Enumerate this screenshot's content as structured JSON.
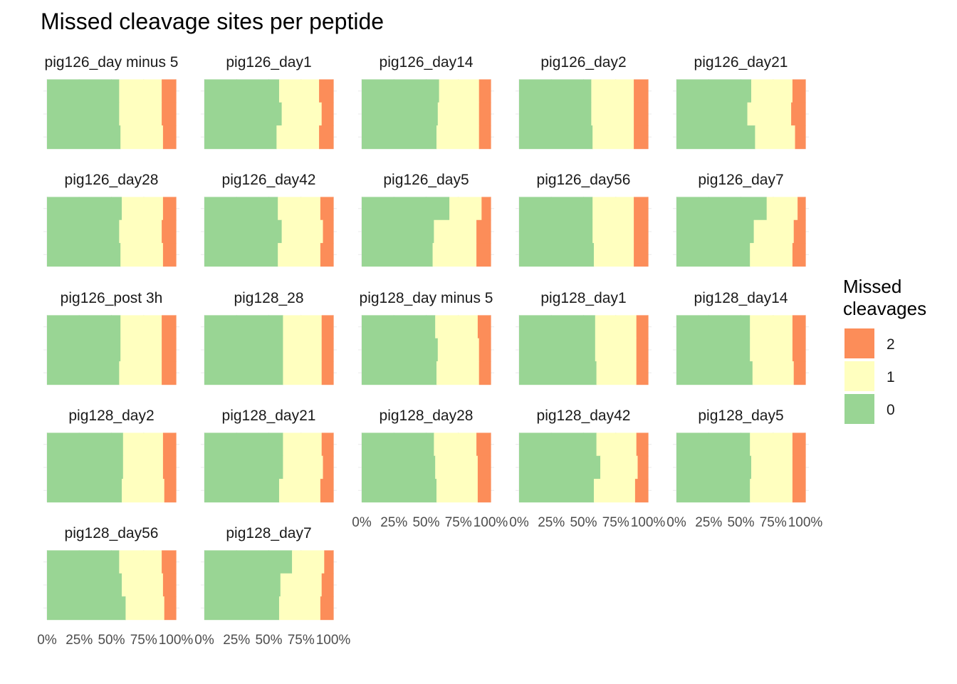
{
  "chart_data": {
    "type": "bar",
    "title": "Missed cleavage sites per peptide",
    "orientation": "horizontal-stacked-100",
    "xticks": [
      "0%",
      "25%",
      "50%",
      "75%",
      "100%"
    ],
    "legend": {
      "title_lines": [
        "Missed",
        "cleavages"
      ],
      "position": "right",
      "entries": [
        {
          "label": "2",
          "color": "#fc8d59"
        },
        {
          "label": "1",
          "color": "#ffffbf"
        },
        {
          "label": "0",
          "color": "#99d594"
        }
      ]
    },
    "series_order": [
      "0",
      "1",
      "2"
    ],
    "colors": {
      "0": "#99d594",
      "1": "#ffffbf",
      "2": "#fc8d59"
    },
    "panels": [
      {
        "name": "pig126_day minus 5",
        "bars": [
          [
            0.56,
            0.89
          ],
          [
            0.56,
            0.89
          ],
          [
            0.57,
            0.9
          ]
        ]
      },
      {
        "name": "pig126_day1",
        "bars": [
          [
            0.58,
            0.89
          ],
          [
            0.6,
            0.91
          ],
          [
            0.56,
            0.89
          ]
        ]
      },
      {
        "name": "pig126_day14",
        "bars": [
          [
            0.6,
            0.91
          ],
          [
            0.59,
            0.91
          ],
          [
            0.58,
            0.91
          ]
        ]
      },
      {
        "name": "pig126_day2",
        "bars": [
          [
            0.56,
            0.89
          ],
          [
            0.56,
            0.89
          ],
          [
            0.57,
            0.89
          ]
        ]
      },
      {
        "name": "pig126_day21",
        "bars": [
          [
            0.58,
            0.9
          ],
          [
            0.55,
            0.89
          ],
          [
            0.61,
            0.92
          ]
        ]
      },
      {
        "name": "pig126_day28",
        "bars": [
          [
            0.58,
            0.9
          ],
          [
            0.56,
            0.89
          ],
          [
            0.57,
            0.9
          ]
        ]
      },
      {
        "name": "pig126_day42",
        "bars": [
          [
            0.57,
            0.9
          ],
          [
            0.6,
            0.92
          ],
          [
            0.57,
            0.9
          ]
        ]
      },
      {
        "name": "pig126_day5",
        "bars": [
          [
            0.68,
            0.93
          ],
          [
            0.56,
            0.89
          ],
          [
            0.55,
            0.89
          ]
        ]
      },
      {
        "name": "pig126_day56",
        "bars": [
          [
            0.57,
            0.89
          ],
          [
            0.57,
            0.89
          ],
          [
            0.58,
            0.89
          ]
        ]
      },
      {
        "name": "pig126_day7",
        "bars": [
          [
            0.7,
            0.94
          ],
          [
            0.6,
            0.91
          ],
          [
            0.57,
            0.9
          ]
        ]
      },
      {
        "name": "pig126_post 3h",
        "bars": [
          [
            0.57,
            0.89
          ],
          [
            0.57,
            0.89
          ],
          [
            0.56,
            0.89
          ]
        ]
      },
      {
        "name": "pig128_28",
        "bars": [
          [
            0.61,
            0.91
          ],
          [
            0.61,
            0.91
          ],
          [
            0.61,
            0.91
          ]
        ]
      },
      {
        "name": "pig128_day minus 5",
        "bars": [
          [
            0.57,
            0.9
          ],
          [
            0.59,
            0.91
          ],
          [
            0.58,
            0.91
          ]
        ]
      },
      {
        "name": "pig128_day1",
        "bars": [
          [
            0.59,
            0.91
          ],
          [
            0.59,
            0.91
          ],
          [
            0.6,
            0.91
          ]
        ]
      },
      {
        "name": "pig128_day14",
        "bars": [
          [
            0.57,
            0.9
          ],
          [
            0.57,
            0.9
          ],
          [
            0.59,
            0.91
          ]
        ]
      },
      {
        "name": "pig128_day2",
        "bars": [
          [
            0.59,
            0.9
          ],
          [
            0.59,
            0.9
          ],
          [
            0.58,
            0.91
          ]
        ]
      },
      {
        "name": "pig128_day21",
        "bars": [
          [
            0.61,
            0.91
          ],
          [
            0.61,
            0.92
          ],
          [
            0.58,
            0.9
          ]
        ]
      },
      {
        "name": "pig128_day28",
        "bars": [
          [
            0.56,
            0.89
          ],
          [
            0.57,
            0.9
          ],
          [
            0.58,
            0.9
          ]
        ]
      },
      {
        "name": "pig128_day42",
        "bars": [
          [
            0.6,
            0.91
          ],
          [
            0.63,
            0.92
          ],
          [
            0.58,
            0.9
          ]
        ]
      },
      {
        "name": "pig128_day5",
        "bars": [
          [
            0.57,
            0.9
          ],
          [
            0.58,
            0.9
          ],
          [
            0.57,
            0.9
          ]
        ]
      },
      {
        "name": "pig128_day56",
        "bars": [
          [
            0.56,
            0.89
          ],
          [
            0.58,
            0.9
          ],
          [
            0.61,
            0.91
          ]
        ]
      },
      {
        "name": "pig128_day7",
        "bars": [
          [
            0.68,
            0.93
          ],
          [
            0.59,
            0.91
          ],
          [
            0.58,
            0.9
          ]
        ]
      }
    ]
  }
}
